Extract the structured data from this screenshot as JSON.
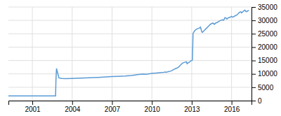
{
  "chart_data": {
    "type": "line",
    "x": [
      1999.2,
      2002.75,
      2002.78,
      2002.82,
      2003.0,
      2003.2,
      2003.5,
      2004.0,
      2005.0,
      2006.0,
      2007.0,
      2007.5,
      2008.0,
      2008.5,
      2009.0,
      2009.3,
      2009.6,
      2009.9,
      2010.0,
      2010.3,
      2010.5,
      2010.7,
      2010.9,
      2011.0,
      2011.1,
      2011.2,
      2011.3,
      2011.4,
      2011.5,
      2011.6,
      2011.7,
      2011.8,
      2011.9,
      2012.0,
      2012.1,
      2012.2,
      2012.3,
      2012.4,
      2012.5,
      2012.6,
      2012.65,
      2012.7,
      2012.75,
      2012.8,
      2012.85,
      2012.9,
      2012.95,
      2013.0,
      2013.05,
      2013.1,
      2013.15,
      2013.2,
      2013.3,
      2013.4,
      2013.5,
      2013.6,
      2013.65,
      2013.7,
      2013.75,
      2013.8,
      2013.9,
      2014.0,
      2014.1,
      2014.2,
      2014.3,
      2014.4,
      2014.5,
      2014.6,
      2014.7,
      2014.8,
      2014.9,
      2015.0,
      2015.1,
      2015.2,
      2015.3,
      2015.4,
      2015.45,
      2015.5,
      2015.6,
      2015.65,
      2015.7,
      2015.8,
      2015.9,
      2016.0,
      2016.1,
      2016.2,
      2016.3,
      2016.4,
      2016.5,
      2016.6,
      2016.7,
      2016.75,
      2016.8,
      2016.9,
      2017.0,
      2017.1,
      2017.2,
      2017.3
    ],
    "values": [
      1750,
      1750,
      8000,
      12000,
      8500,
      8300,
      8200,
      8300,
      8500,
      8700,
      9000,
      9100,
      9200,
      9400,
      9800,
      9900,
      9850,
      10100,
      10200,
      10300,
      10400,
      10500,
      10600,
      10700,
      10600,
      10800,
      10900,
      11000,
      11200,
      11500,
      11800,
      12000,
      12200,
      12500,
      13000,
      13500,
      14000,
      14200,
      14400,
      14500,
      13800,
      14000,
      14200,
      14300,
      14500,
      14700,
      14900,
      15000,
      15200,
      25200,
      25500,
      26000,
      26500,
      26800,
      27000,
      27200,
      27500,
      26800,
      25800,
      25500,
      26000,
      26500,
      27000,
      27500,
      28000,
      28500,
      28800,
      29000,
      28500,
      29000,
      29200,
      29500,
      29800,
      30000,
      30200,
      30000,
      30500,
      31000,
      30800,
      30500,
      30800,
      31000,
      31200,
      31500,
      31200,
      31500,
      31800,
      32000,
      32500,
      33000,
      33200,
      32800,
      33000,
      33500,
      33800,
      33200,
      33500,
      33700
    ],
    "color": "#5b9bd5",
    "xlim": [
      1999.2,
      2017.5
    ],
    "ylim": [
      0,
      35000
    ],
    "xticks": [
      2001,
      2004,
      2007,
      2010,
      2013,
      2016
    ],
    "yticks": [
      0,
      5000,
      10000,
      15000,
      20000,
      25000,
      30000,
      35000
    ],
    "grid": true
  }
}
